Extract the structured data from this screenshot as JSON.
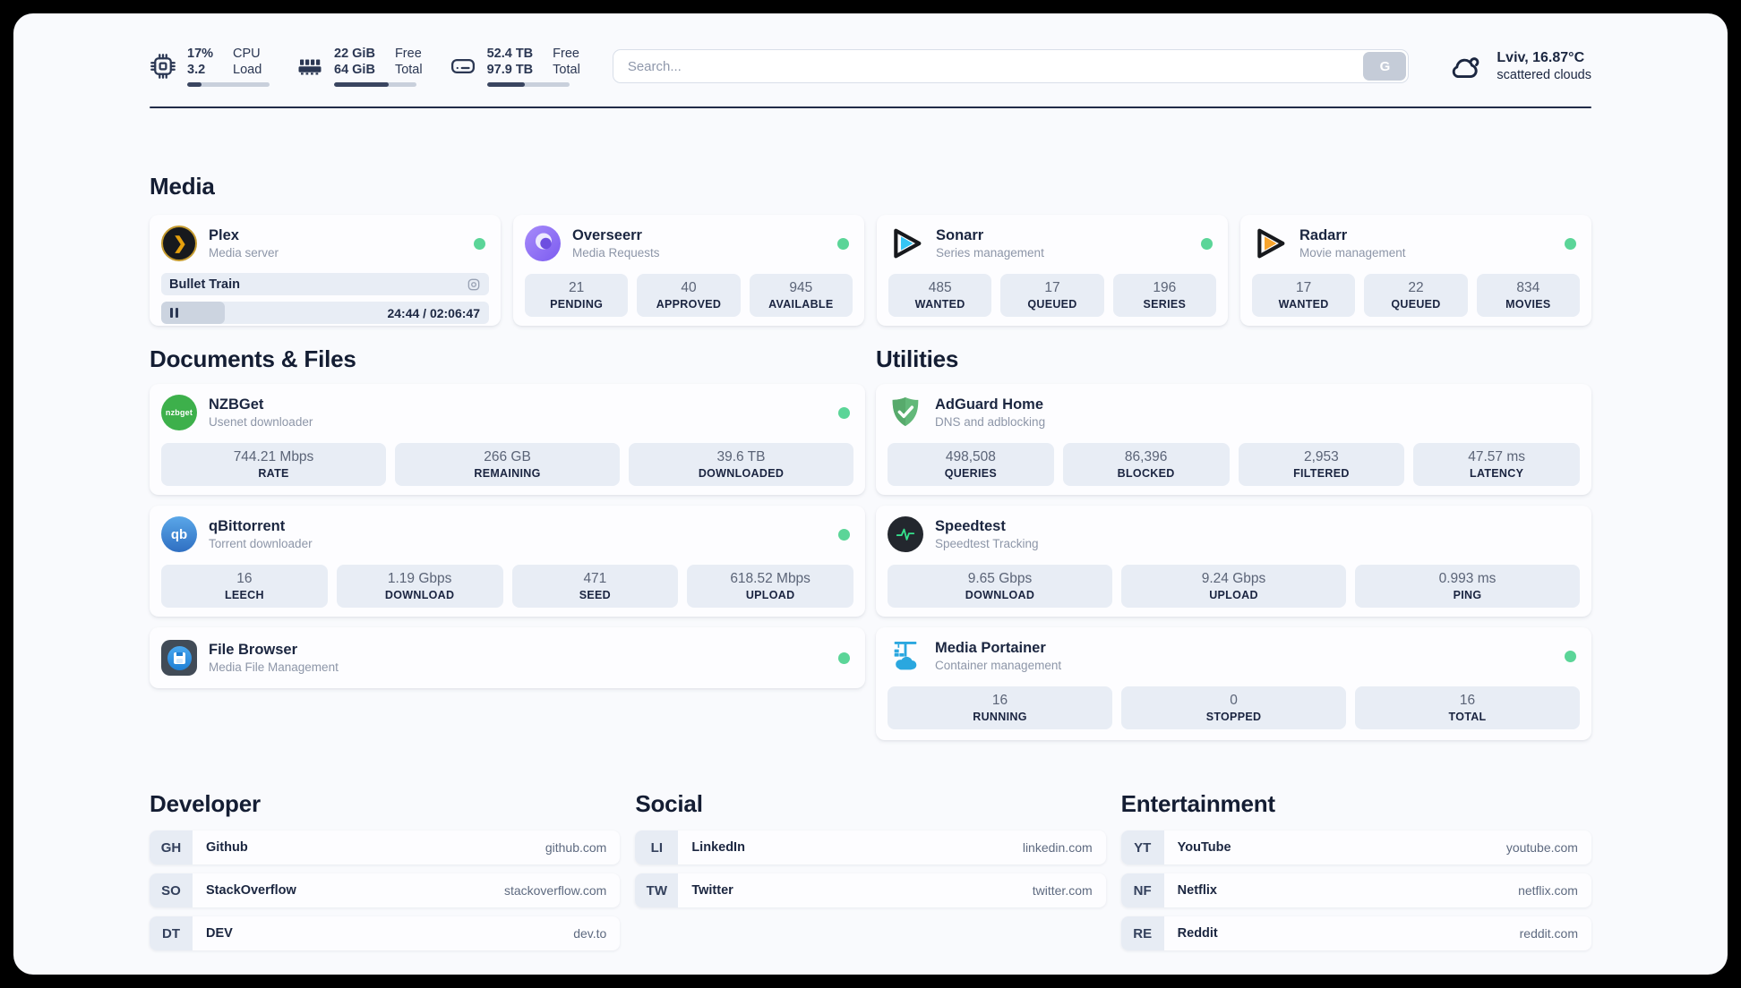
{
  "colors": {
    "status_online": "#5bd598",
    "accent_dark": "#222c49",
    "pill_bg": "#e8edf5"
  },
  "topbar": {
    "stats": [
      {
        "icon": "cpu-icon",
        "value1": "17%",
        "value2": "3.2",
        "label1": "CPU",
        "label2": "Load",
        "progress_pct": 17
      },
      {
        "icon": "ram-icon",
        "value1": "22 GiB",
        "value2": "64 GiB",
        "label1": "Free",
        "label2": "Total",
        "progress_pct": 66
      },
      {
        "icon": "disk-icon",
        "value1": "52.4 TB",
        "value2": "97.9 TB",
        "label1": "Free",
        "label2": "Total",
        "progress_pct": 46
      }
    ],
    "search": {
      "placeholder": "Search...",
      "button_label": "G"
    },
    "weather": {
      "icon": "scattered-clouds-icon",
      "location_temp": "Lviv, 16.87°C",
      "condition": "scattered clouds"
    }
  },
  "media": {
    "title": "Media",
    "apps": [
      {
        "name": "Plex",
        "desc": "Media server",
        "icon": "plex-icon",
        "online": true,
        "player": {
          "title": "Bullet Train",
          "time": "24:44 / 02:06:47",
          "progress_pct": 19.5
        }
      },
      {
        "name": "Overseerr",
        "desc": "Media Requests",
        "icon": "overseerr-icon",
        "online": true,
        "stats": [
          {
            "value": "21",
            "label": "PENDING"
          },
          {
            "value": "40",
            "label": "APPROVED"
          },
          {
            "value": "945",
            "label": "AVAILABLE"
          }
        ]
      },
      {
        "name": "Sonarr",
        "desc": "Series management",
        "icon": "sonarr-icon",
        "online": true,
        "stats": [
          {
            "value": "485",
            "label": "WANTED"
          },
          {
            "value": "17",
            "label": "QUEUED"
          },
          {
            "value": "196",
            "label": "SERIES"
          }
        ]
      },
      {
        "name": "Radarr",
        "desc": "Movie management",
        "icon": "radarr-icon",
        "online": true,
        "stats": [
          {
            "value": "17",
            "label": "WANTED"
          },
          {
            "value": "22",
            "label": "QUEUED"
          },
          {
            "value": "834",
            "label": "MOVIES"
          }
        ]
      }
    ]
  },
  "documents": {
    "title": "Documents & Files",
    "apps": [
      {
        "name": "NZBGet",
        "desc": "Usenet downloader",
        "icon": "nzbget-icon",
        "online": true,
        "stats": [
          {
            "value": "744.21 Mbps",
            "label": "RATE"
          },
          {
            "value": "266 GB",
            "label": "REMAINING"
          },
          {
            "value": "39.6 TB",
            "label": "DOWNLOADED"
          }
        ]
      },
      {
        "name": "qBittorrent",
        "desc": "Torrent downloader",
        "icon": "qbittorrent-icon",
        "online": true,
        "stats": [
          {
            "value": "16",
            "label": "LEECH"
          },
          {
            "value": "1.19 Gbps",
            "label": "DOWNLOAD"
          },
          {
            "value": "471",
            "label": "SEED"
          },
          {
            "value": "618.52 Mbps",
            "label": "UPLOAD"
          }
        ]
      },
      {
        "name": "File Browser",
        "desc": "Media File Management",
        "icon": "filebrowser-icon",
        "online": true,
        "stats": []
      }
    ]
  },
  "utilities": {
    "title": "Utilities",
    "apps": [
      {
        "name": "AdGuard Home",
        "desc": "DNS and adblocking",
        "icon": "adguard-icon",
        "online": false,
        "stats": [
          {
            "value": "498,508",
            "label": "QUERIES"
          },
          {
            "value": "86,396",
            "label": "BLOCKED"
          },
          {
            "value": "2,953",
            "label": "FILTERED"
          },
          {
            "value": "47.57 ms",
            "label": "LATENCY"
          }
        ]
      },
      {
        "name": "Speedtest",
        "desc": "Speedtest Tracking",
        "icon": "speedtest-icon",
        "online": false,
        "stats": [
          {
            "value": "9.65 Gbps",
            "label": "DOWNLOAD"
          },
          {
            "value": "9.24 Gbps",
            "label": "UPLOAD"
          },
          {
            "value": "0.993 ms",
            "label": "PING"
          }
        ]
      },
      {
        "name": "Media Portainer",
        "desc": "Container management",
        "icon": "portainer-icon",
        "online": true,
        "stats": [
          {
            "value": "16",
            "label": "RUNNING"
          },
          {
            "value": "0",
            "label": "STOPPED"
          },
          {
            "value": "16",
            "label": "TOTAL"
          }
        ]
      }
    ]
  },
  "bookmarks": [
    {
      "title": "Developer",
      "items": [
        {
          "abbr": "GH",
          "name": "Github",
          "domain": "github.com"
        },
        {
          "abbr": "SO",
          "name": "StackOverflow",
          "domain": "stackoverflow.com"
        },
        {
          "abbr": "DT",
          "name": "DEV",
          "domain": "dev.to"
        }
      ]
    },
    {
      "title": "Social",
      "items": [
        {
          "abbr": "LI",
          "name": "LinkedIn",
          "domain": "linkedin.com"
        },
        {
          "abbr": "TW",
          "name": "Twitter",
          "domain": "twitter.com"
        }
      ]
    },
    {
      "title": "Entertainment",
      "items": [
        {
          "abbr": "YT",
          "name": "YouTube",
          "domain": "youtube.com"
        },
        {
          "abbr": "NF",
          "name": "Netflix",
          "domain": "netflix.com"
        },
        {
          "abbr": "RE",
          "name": "Reddit",
          "domain": "reddit.com"
        }
      ]
    }
  ]
}
